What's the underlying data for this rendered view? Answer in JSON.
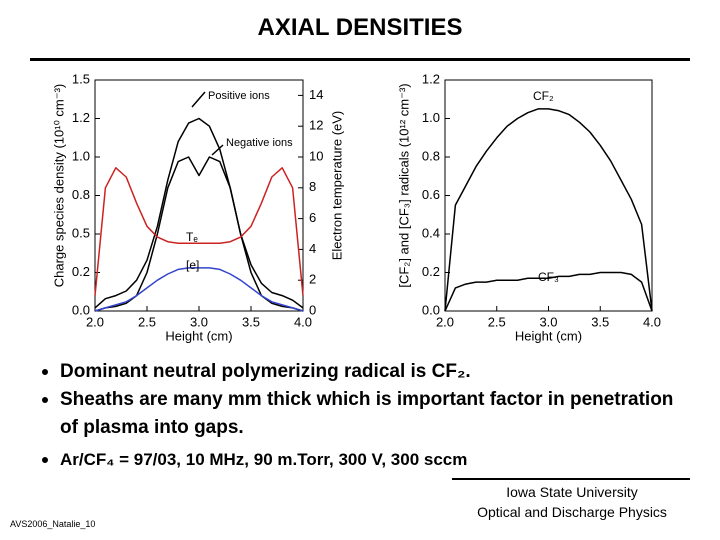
{
  "title": "AXIAL DENSITIES",
  "bullets": [
    "Dominant neutral polymerizing radical is CF₂.",
    "Sheaths are many mm thick which is important factor in penetration of plasma into gaps.",
    "Ar/CF₄ = 97/03, 10 MHz, 90 m.Torr, 300 V,  300 sccm"
  ],
  "footer": {
    "institution": [
      "Iowa State University",
      "Optical and Discharge Physics"
    ],
    "code": "AVS2006_Natalie_10"
  },
  "chart_data": [
    {
      "type": "line",
      "xlabel": "Height (cm)",
      "ylabel": "Charge species density (10¹⁰ cm⁻³)",
      "y2label": "Electron temperature (eV)",
      "x": [
        2.0,
        2.1,
        2.2,
        2.3,
        2.4,
        2.5,
        2.6,
        2.7,
        2.8,
        2.9,
        3.0,
        3.1,
        3.2,
        3.3,
        3.4,
        3.5,
        3.6,
        3.7,
        3.8,
        3.9,
        4.0
      ],
      "series": [
        {
          "name": "Positive ions",
          "color": "#000000",
          "values": [
            0.02,
            0.08,
            0.1,
            0.13,
            0.2,
            0.33,
            0.55,
            0.85,
            1.1,
            1.22,
            1.25,
            1.2,
            1.05,
            0.8,
            0.5,
            0.3,
            0.18,
            0.12,
            0.1,
            0.07,
            0.02
          ]
        },
        {
          "name": "Negative ions",
          "color": "#000000",
          "values": [
            0,
            0.02,
            0.03,
            0.05,
            0.1,
            0.25,
            0.5,
            0.8,
            0.97,
            1.0,
            0.88,
            1.0,
            0.97,
            0.8,
            0.5,
            0.25,
            0.1,
            0.05,
            0.03,
            0.02,
            0
          ]
        },
        {
          "name": "Tₑ",
          "color": "#cc2222",
          "axis": "y2",
          "values": [
            1,
            8,
            9.3,
            8.7,
            7,
            5.5,
            4.8,
            4.5,
            4.4,
            4.4,
            4.4,
            4.4,
            4.4,
            4.5,
            4.8,
            5.5,
            7,
            8.7,
            9.3,
            8,
            1
          ]
        },
        {
          "name": "[e]",
          "color": "#3344cc",
          "values": [
            0,
            0.02,
            0.04,
            0.06,
            0.1,
            0.15,
            0.2,
            0.24,
            0.27,
            0.28,
            0.28,
            0.28,
            0.27,
            0.24,
            0.2,
            0.15,
            0.1,
            0.06,
            0.04,
            0.02,
            0
          ]
        }
      ],
      "xlim": [
        2.0,
        4.0
      ],
      "xticks": [
        {
          "value": 2.0,
          "label": "2.0"
        },
        2.5,
        {
          "value": 3.0,
          "label": "3.0"
        },
        3.5,
        {
          "value": 4.0,
          "label": "4.0"
        }
      ],
      "ylim": [
        0,
        1.5
      ],
      "yticks": [
        {
          "value": 0,
          "label": "0.0"
        },
        {
          "value": 0.25,
          "label": "0.2"
        },
        0.5,
        {
          "value": 0.75,
          "label": "0.8"
        },
        {
          "value": 1.0,
          "label": "1.0"
        },
        {
          "value": 1.25,
          "label": "1.2"
        },
        1.5
      ],
      "y2lim": [
        0,
        15
      ],
      "y2ticks": [
        0,
        2,
        4,
        6,
        8,
        10,
        12,
        14
      ]
    },
    {
      "type": "line",
      "xlabel": "Height (cm)",
      "ylabel": "[CF₂] and [CF₃] radicals  (10¹² cm⁻³)",
      "x": [
        2.0,
        2.1,
        2.2,
        2.3,
        2.4,
        2.5,
        2.6,
        2.7,
        2.8,
        2.9,
        3.0,
        3.1,
        3.2,
        3.3,
        3.4,
        3.5,
        3.6,
        3.7,
        3.8,
        3.9,
        4.0
      ],
      "series": [
        {
          "name": "CF₂",
          "color": "#000000",
          "values": [
            0,
            0.55,
            0.65,
            0.75,
            0.83,
            0.9,
            0.96,
            1.0,
            1.03,
            1.05,
            1.05,
            1.04,
            1.02,
            0.98,
            0.93,
            0.86,
            0.78,
            0.68,
            0.58,
            0.45,
            0
          ]
        },
        {
          "name": "CF₃",
          "color": "#000000",
          "values": [
            0,
            0.12,
            0.14,
            0.15,
            0.15,
            0.16,
            0.16,
            0.16,
            0.17,
            0.17,
            0.17,
            0.18,
            0.18,
            0.19,
            0.19,
            0.2,
            0.2,
            0.2,
            0.19,
            0.15,
            0
          ]
        }
      ],
      "xlim": [
        2.0,
        4.0
      ],
      "xticks": [
        {
          "value": 2.0,
          "label": "2.0"
        },
        2.5,
        {
          "value": 3.0,
          "label": "3.0"
        },
        3.5,
        {
          "value": 4.0,
          "label": "4.0"
        }
      ],
      "ylim": [
        0,
        1.2
      ],
      "yticks": [
        {
          "value": 0,
          "label": "0.0"
        },
        0.2,
        0.4,
        0.6,
        0.8,
        {
          "value": 1.0,
          "label": "1.0"
        },
        1.2
      ]
    }
  ]
}
